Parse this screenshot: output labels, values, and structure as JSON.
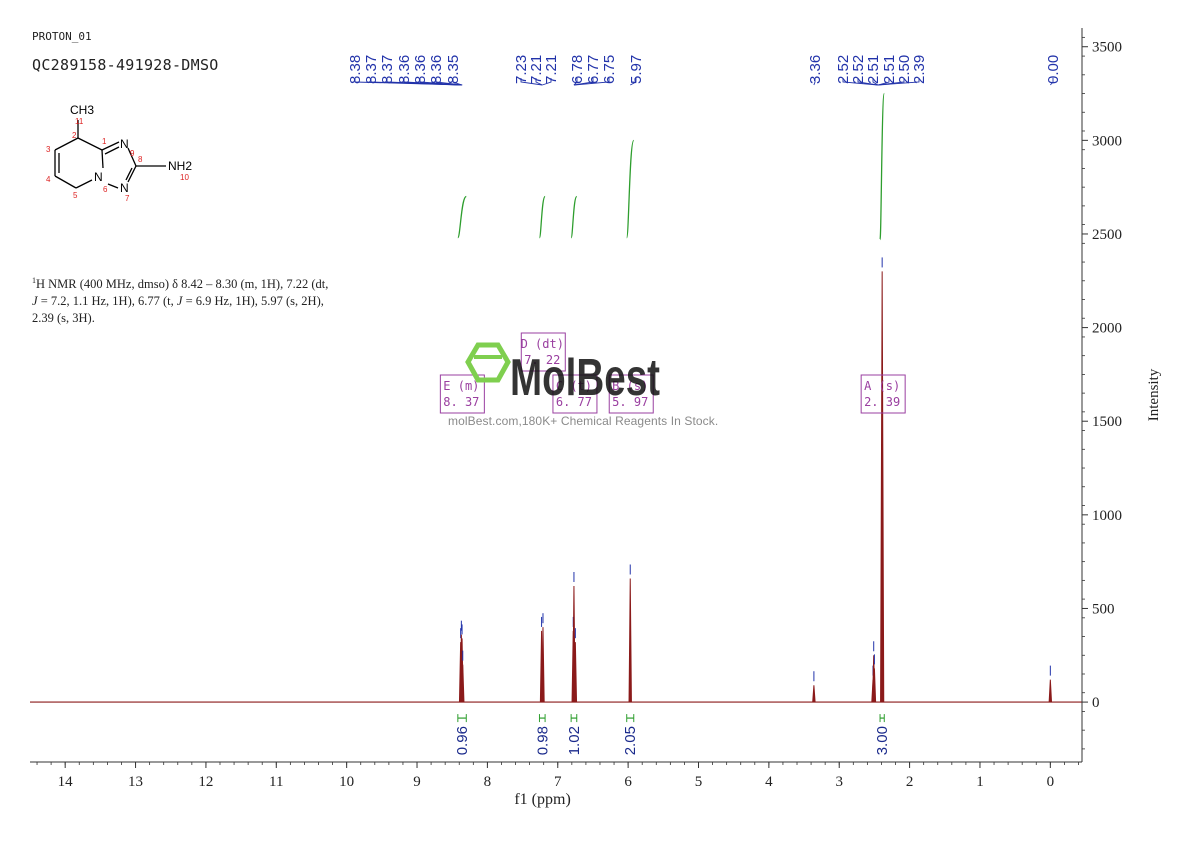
{
  "header": {
    "experiment": "PROTON_01",
    "sample": "QC289158-491928-DMSO"
  },
  "structure": {
    "substituent_top": "CH3",
    "substituent_right": "NH2",
    "ring_atoms": [
      "N",
      "N",
      "N"
    ],
    "atom_numbers": [
      "11",
      "2",
      "1",
      "3",
      "4",
      "5",
      "6",
      "7",
      "8",
      "9",
      "10"
    ]
  },
  "description": {
    "isotope": "1",
    "text_1": "H NMR (400 MHz, dmso) δ 8.42 – 8.30 (m, 1H), 7.22 (dt,",
    "j_1": "J",
    "text_2": " = 7.2, 1.1 Hz, 1H), 6.77 (t, ",
    "j_2": "J",
    "text_3": " = 6.9 Hz, 1H), 5.97 (s, 2H),",
    "text_4": "2.39 (s, 3H)."
  },
  "watermark": {
    "brand": "MolBest",
    "tagline": "molBest.com,180K+ Chemical Reagents In Stock.",
    "color": "#7fcf4f"
  },
  "chart_data": {
    "type": "line",
    "title": "",
    "xlabel": "f1 (ppm)",
    "ylabel": "Intensity",
    "xlim": [
      14.5,
      -0.45
    ],
    "ylim": [
      -320,
      3600
    ],
    "x_ticks": [
      14,
      13,
      12,
      11,
      10,
      9,
      8,
      7,
      6,
      5,
      4,
      3,
      2,
      1,
      0
    ],
    "y_ticks": [
      0,
      500,
      1000,
      1500,
      2000,
      2500,
      3000,
      3500
    ],
    "grid": false,
    "colors": {
      "spectrum": "#8b1a1a",
      "peak_labels": "#2233aa",
      "integral_curve": "#2e9e2e",
      "integral_labels": "#1a2a8c",
      "multiplet_box": "#9a3fa0"
    },
    "peaks": [
      {
        "ppm": 8.38,
        "height": 320
      },
      {
        "ppm": 8.37,
        "height": 360
      },
      {
        "ppm": 8.36,
        "height": 340
      },
      {
        "ppm": 8.35,
        "height": 200
      },
      {
        "ppm": 7.23,
        "height": 380
      },
      {
        "ppm": 7.21,
        "height": 400
      },
      {
        "ppm": 6.78,
        "height": 380
      },
      {
        "ppm": 6.77,
        "height": 620
      },
      {
        "ppm": 6.75,
        "height": 320
      },
      {
        "ppm": 5.97,
        "height": 660
      },
      {
        "ppm": 3.36,
        "height": 90
      },
      {
        "ppm": 2.52,
        "height": 120
      },
      {
        "ppm": 2.51,
        "height": 250
      },
      {
        "ppm": 2.5,
        "height": 180
      },
      {
        "ppm": 2.39,
        "height": 2300
      },
      {
        "ppm": 0.0,
        "height": 120
      }
    ],
    "peak_label_groups": [
      {
        "labels": [
          "8.38",
          "8.37",
          "8.37",
          "8.36",
          "8.36",
          "8.36",
          "8.35"
        ],
        "target_ppm": 8.36
      },
      {
        "labels": [
          "7.23",
          "7.21",
          "7.21"
        ],
        "target_ppm": 7.22
      },
      {
        "labels": [
          "6.78",
          "6.77",
          "6.75"
        ],
        "target_ppm": 6.77
      },
      {
        "labels": [
          "5.97"
        ],
        "target_ppm": 5.97
      },
      {
        "labels": [
          "3.36"
        ],
        "target_ppm": 3.36
      },
      {
        "labels": [
          "2.52",
          "2.52",
          "2.51",
          "2.51",
          "2.50",
          "2.39"
        ],
        "target_ppm": 2.45
      },
      {
        "labels": [
          "0.00"
        ],
        "target_ppm": 0.0
      }
    ],
    "integrals": [
      {
        "from": 8.42,
        "to": 8.3,
        "value": "0.96",
        "curve_bottom": 2480,
        "curve_top": 2700
      },
      {
        "from": 7.26,
        "to": 7.18,
        "value": "0.98",
        "curve_bottom": 2480,
        "curve_top": 2700
      },
      {
        "from": 6.81,
        "to": 6.73,
        "value": "1.02",
        "curve_bottom": 2480,
        "curve_top": 2700
      },
      {
        "from": 6.02,
        "to": 5.92,
        "value": "2.05",
        "curve_bottom": 2480,
        "curve_top": 3000
      },
      {
        "from": 2.42,
        "to": 2.36,
        "value": "3.00",
        "curve_bottom": 2470,
        "curve_top": 3250
      }
    ],
    "multiplets": [
      {
        "letter": "E",
        "mult": "(m)",
        "shift": "8. 37",
        "ppm": 8.37
      },
      {
        "letter": "D",
        "mult": "(dt)",
        "shift": "7. 22",
        "ppm": 7.22
      },
      {
        "letter": "C",
        "mult": "(t)",
        "shift": "6. 77",
        "ppm": 6.77
      },
      {
        "letter": "B",
        "mult": "(s)",
        "shift": "5. 97",
        "ppm": 5.97
      },
      {
        "letter": "A",
        "mult": "(s)",
        "shift": "2. 39",
        "ppm": 2.39
      }
    ]
  }
}
